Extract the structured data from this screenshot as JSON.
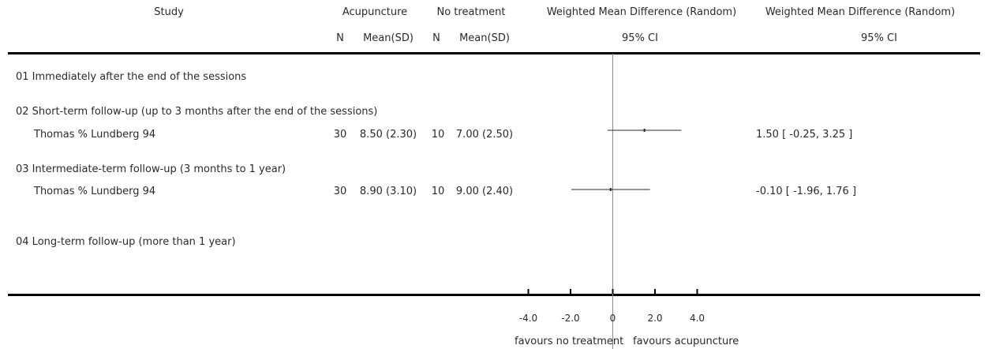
{
  "header": {
    "study": "Study",
    "group1": "Acupuncture",
    "group2": "No treatment",
    "wmd_col1": "Weighted Mean Difference (Random)",
    "wmd_col2": "Weighted Mean Difference (Random)",
    "n1": "N",
    "mean1": "Mean(SD)",
    "n2": "N",
    "mean2": "Mean(SD)",
    "ci1": "95% CI",
    "ci2": "95% CI"
  },
  "groups": [
    {
      "label": "01 Immediately after the end of the sessions"
    },
    {
      "label": "02 Short-term follow-up (up to 3 months after the end of the sessions)"
    },
    {
      "label": "03 Intermediate-term follow-up (3 months to 1 year)"
    },
    {
      "label": "04 Long-term follow-up (more than 1 year)"
    }
  ],
  "studies": [
    {
      "name": "Thomas % Lundberg 94",
      "n1": "30",
      "m1": "8.50 (2.30)",
      "n2": "10",
      "m2": "7.00 (2.50)",
      "ci_text": "1.50 [ -0.25, 3.25 ]"
    },
    {
      "name": "Thomas % Lundberg 94",
      "n1": "30",
      "m1": "8.90 (3.10)",
      "n2": "10",
      "m2": "9.00 (2.40)",
      "ci_text": "-0.10 [ -1.96, 1.76 ]"
    }
  ],
  "axis": {
    "ticks": [
      "-4.0",
      "-2.0",
      "0",
      "2.0",
      "4.0"
    ],
    "left_label": "favours no treatment",
    "right_label": "favours acupuncture"
  },
  "chart_data": {
    "type": "forest",
    "x_ticks": [
      -4,
      -2,
      0,
      2,
      4
    ],
    "xlim": [
      -4,
      4
    ],
    "null_line": 0,
    "points": [
      {
        "study": "Thomas % Lundberg 94",
        "subgroup": "02 Short-term follow-up (up to 3 months after the end of the sessions)",
        "estimate": 1.5,
        "ci_low": -0.25,
        "ci_high": 3.25
      },
      {
        "study": "Thomas % Lundberg 94",
        "subgroup": "03 Intermediate-term follow-up (3 months to 1 year)",
        "estimate": -0.1,
        "ci_low": -1.96,
        "ci_high": 1.76
      }
    ]
  }
}
